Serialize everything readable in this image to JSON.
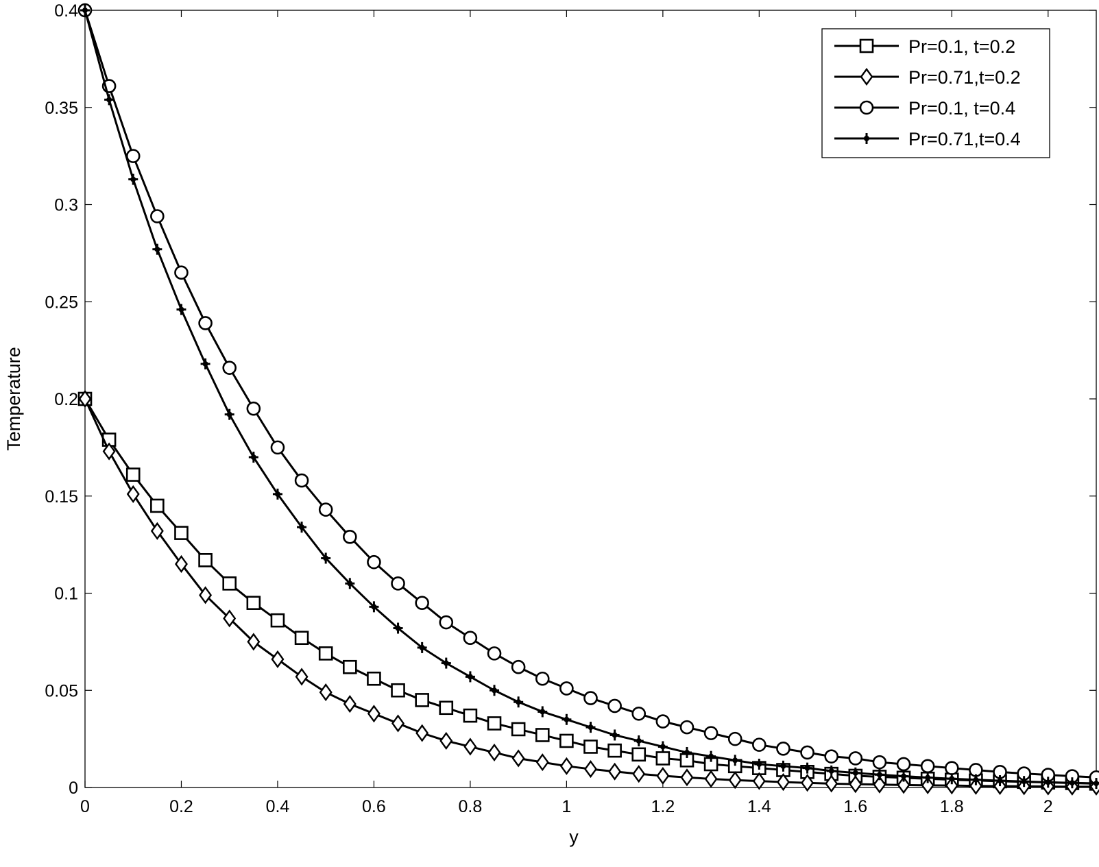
{
  "chart_data": {
    "type": "line",
    "xlabel": "y",
    "ylabel": "Temperature",
    "xlim": [
      0,
      2.1
    ],
    "ylim": [
      0,
      0.4
    ],
    "x_ticks": [
      0,
      0.2,
      0.4,
      0.6,
      0.8,
      1,
      1.2,
      1.4,
      1.6,
      1.8,
      2
    ],
    "x_tick_labels": [
      "0",
      "0.2",
      "0.4",
      "0.6",
      "0.8",
      "1",
      "1.2",
      "1.4",
      "1.6",
      "1.8",
      "2"
    ],
    "y_ticks": [
      0,
      0.05,
      0.1,
      0.15,
      0.2,
      0.25,
      0.3,
      0.35,
      0.4
    ],
    "y_tick_labels": [
      "0",
      "0.05",
      "0.1",
      "0.15",
      "0.2",
      "0.25",
      "0.3",
      "0.35",
      "0.4"
    ],
    "grid": false,
    "legend_position": "top-right",
    "line_color": "#000000",
    "x": [
      0,
      0.05,
      0.1,
      0.15,
      0.2,
      0.25,
      0.3,
      0.35,
      0.4,
      0.45,
      0.5,
      0.55,
      0.6,
      0.65,
      0.7,
      0.75,
      0.8,
      0.85,
      0.9,
      0.95,
      1,
      1.05,
      1.1,
      1.15,
      1.2,
      1.25,
      1.3,
      1.35,
      1.4,
      1.45,
      1.5,
      1.55,
      1.6,
      1.65,
      1.7,
      1.75,
      1.8,
      1.85,
      1.9,
      1.95,
      2,
      2.05,
      2.1
    ],
    "series": [
      {
        "name": "Pr=0.1, t=0.2",
        "marker": "square",
        "values": [
          0.2,
          0.179,
          0.161,
          0.145,
          0.131,
          0.117,
          0.105,
          0.095,
          0.086,
          0.077,
          0.069,
          0.062,
          0.056,
          0.05,
          0.045,
          0.041,
          0.037,
          0.033,
          0.03,
          0.027,
          0.024,
          0.021,
          0.019,
          0.017,
          0.015,
          0.014,
          0.012,
          0.011,
          0.01,
          0.009,
          0.008,
          0.007,
          0.006,
          0.0055,
          0.005,
          0.0045,
          0.004,
          0.0036,
          0.0032,
          0.0029,
          0.0026,
          0.0023,
          0.002
        ]
      },
      {
        "name": "Pr=0.71,t=0.2",
        "marker": "diamond",
        "values": [
          0.2,
          0.173,
          0.151,
          0.132,
          0.115,
          0.099,
          0.087,
          0.075,
          0.066,
          0.057,
          0.049,
          0.043,
          0.038,
          0.033,
          0.028,
          0.024,
          0.021,
          0.018,
          0.015,
          0.013,
          0.011,
          0.0095,
          0.0082,
          0.007,
          0.006,
          0.0052,
          0.0044,
          0.0038,
          0.0033,
          0.0028,
          0.0024,
          0.002,
          0.0017,
          0.0015,
          0.0013,
          0.0011,
          0.001,
          0.0008,
          0.0007,
          0.0006,
          0.0005,
          0.0004,
          0.0004
        ]
      },
      {
        "name": "Pr=0.1, t=0.4",
        "marker": "circle",
        "values": [
          0.4,
          0.361,
          0.325,
          0.294,
          0.265,
          0.239,
          0.216,
          0.195,
          0.175,
          0.158,
          0.143,
          0.129,
          0.116,
          0.105,
          0.095,
          0.085,
          0.077,
          0.069,
          0.062,
          0.056,
          0.051,
          0.046,
          0.042,
          0.038,
          0.034,
          0.031,
          0.028,
          0.025,
          0.022,
          0.02,
          0.018,
          0.016,
          0.015,
          0.013,
          0.012,
          0.011,
          0.01,
          0.009,
          0.008,
          0.0072,
          0.0065,
          0.0058,
          0.0052
        ]
      },
      {
        "name": "Pr=0.71,t=0.4",
        "marker": "star",
        "values": [
          0.4,
          0.354,
          0.313,
          0.277,
          0.246,
          0.218,
          0.192,
          0.17,
          0.151,
          0.134,
          0.118,
          0.105,
          0.093,
          0.082,
          0.072,
          0.064,
          0.057,
          0.05,
          0.044,
          0.039,
          0.035,
          0.031,
          0.027,
          0.024,
          0.021,
          0.018,
          0.016,
          0.014,
          0.012,
          0.011,
          0.01,
          0.0085,
          0.0075,
          0.0066,
          0.0058,
          0.0051,
          0.0045,
          0.004,
          0.0035,
          0.0031,
          0.0027,
          0.0024,
          0.0021
        ]
      }
    ]
  }
}
